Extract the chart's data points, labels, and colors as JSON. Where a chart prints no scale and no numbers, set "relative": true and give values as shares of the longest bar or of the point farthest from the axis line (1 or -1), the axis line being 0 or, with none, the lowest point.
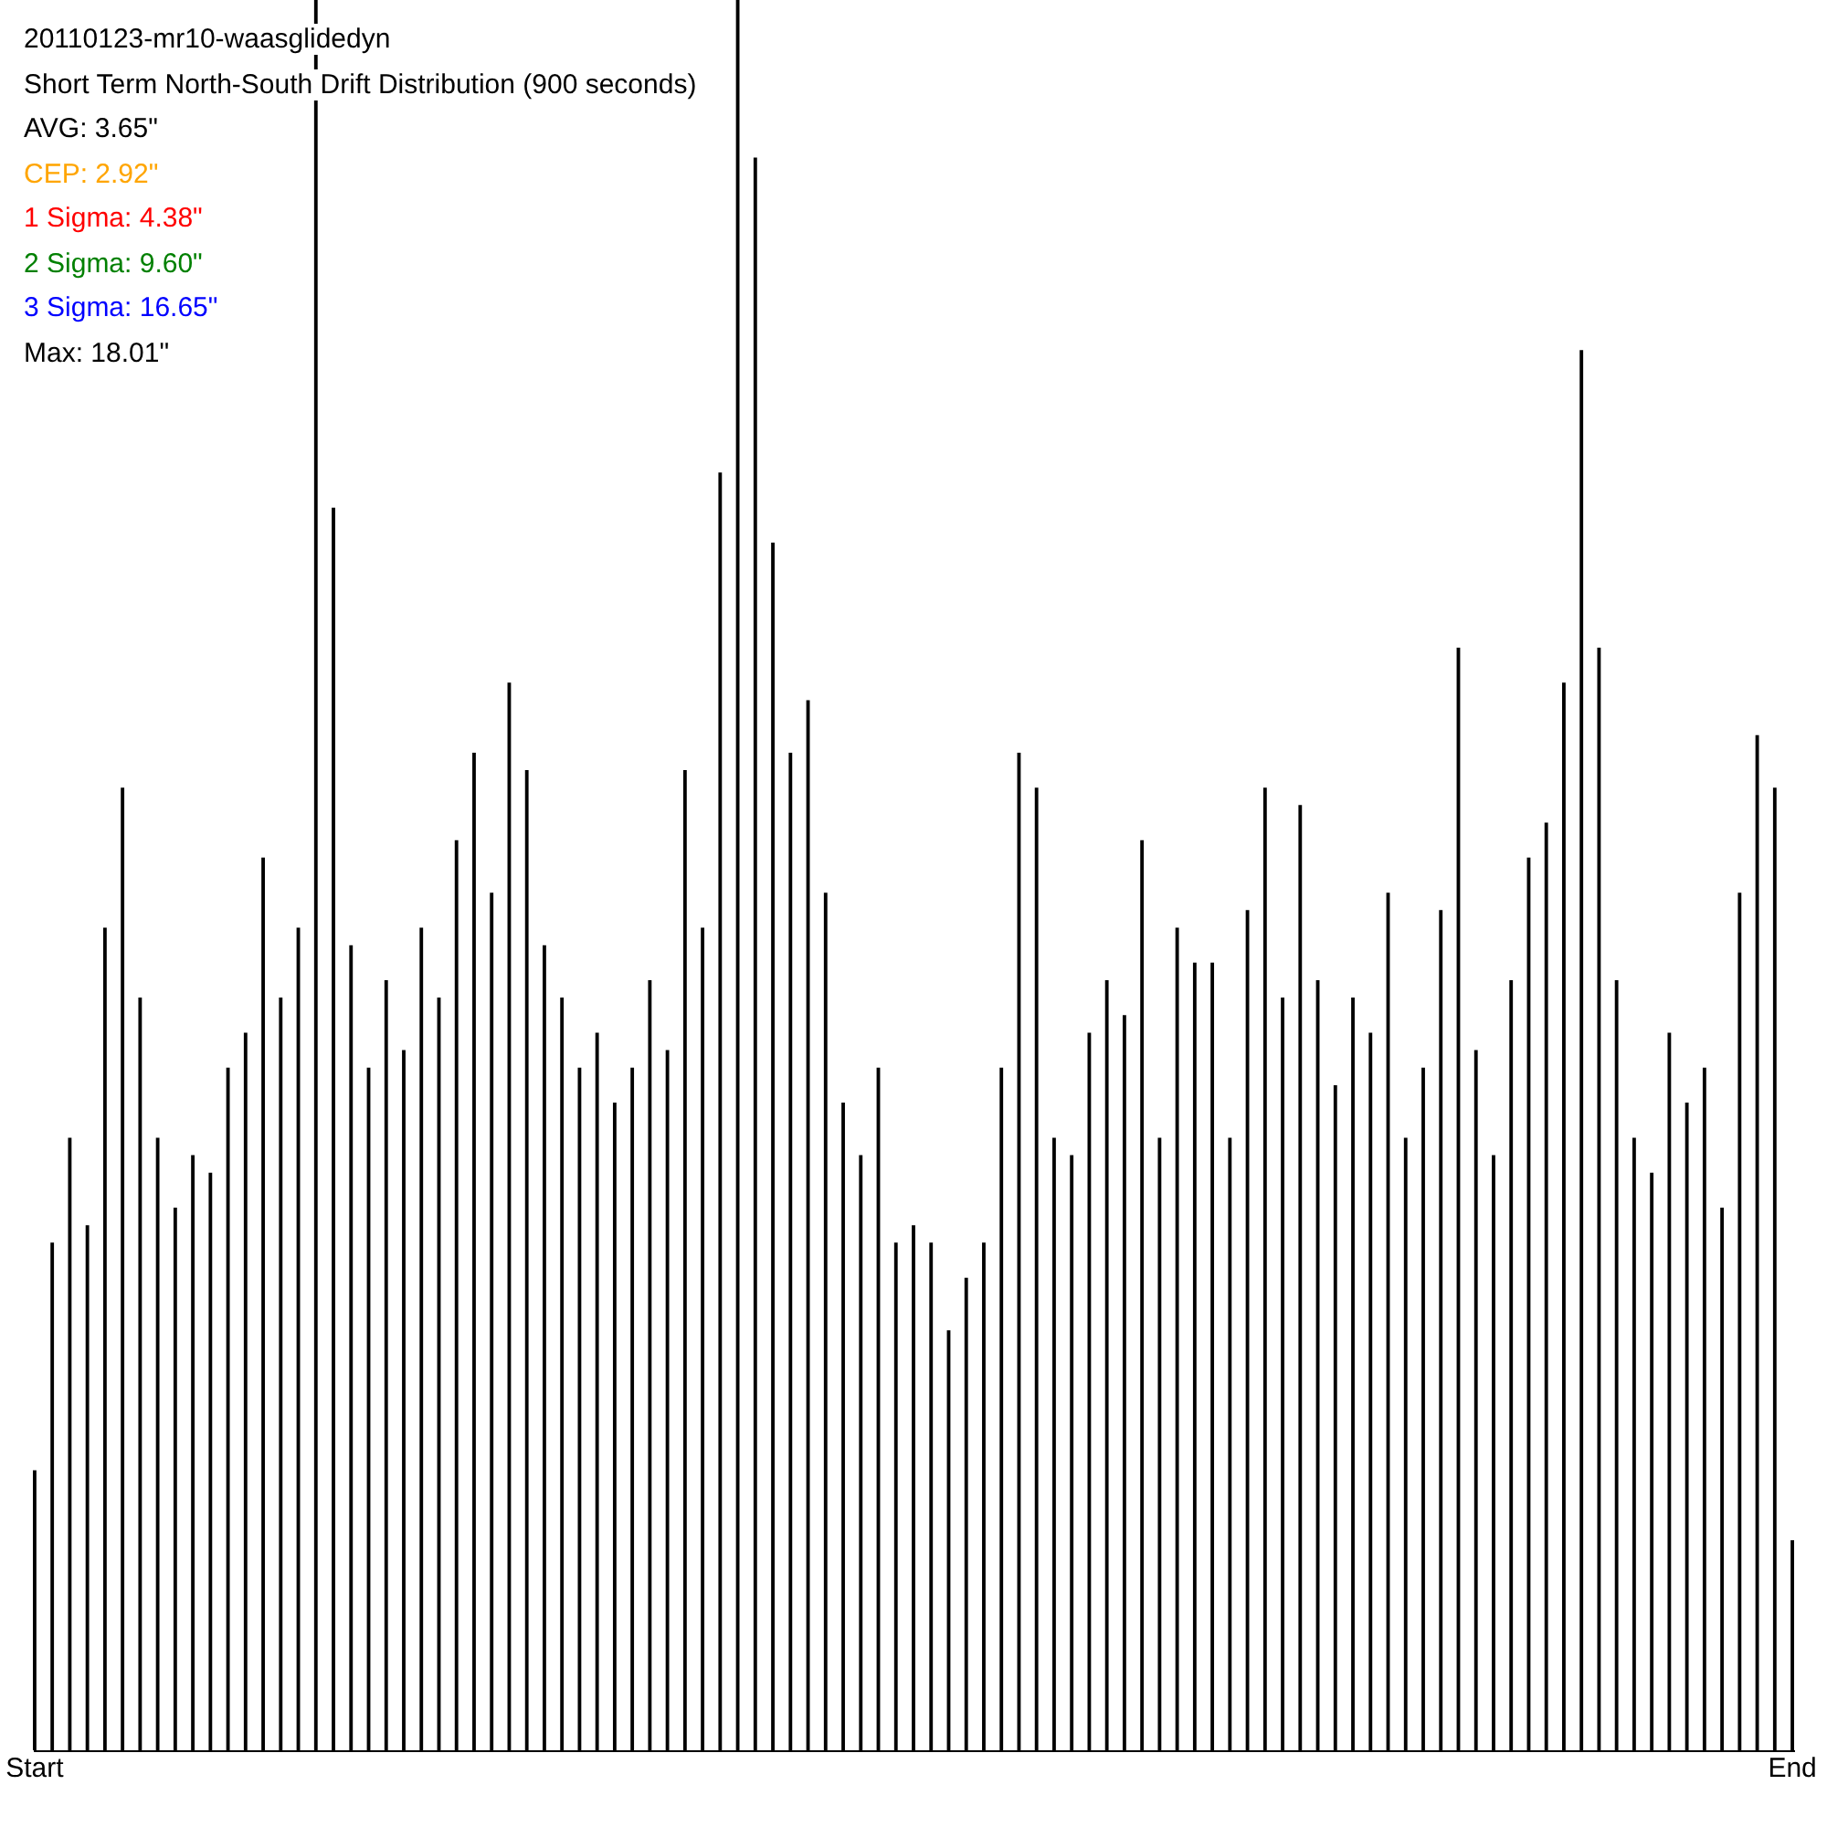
{
  "chart_data": {
    "type": "bar",
    "title": "20110123-mr10-waasglidedyn",
    "subtitle": "Short Term North-South Drift Distribution (900 seconds)",
    "annotations": [
      "AVG: 3.65\"",
      "CEP: 2.92\"",
      "1 Sigma: 4.38\"",
      "2 Sigma: 9.60\"",
      "3 Sigma: 16.65\"",
      "Max: 18.01\""
    ],
    "relative": true,
    "color": "#000000",
    "grid": false,
    "categories": [
      "Start",
      null,
      null,
      null,
      null,
      null,
      null,
      null,
      null,
      null,
      null,
      null,
      null,
      null,
      null,
      null,
      null,
      null,
      null,
      null,
      null,
      null,
      null,
      null,
      null,
      null,
      null,
      null,
      null,
      null,
      null,
      null,
      null,
      null,
      null,
      null,
      null,
      null,
      null,
      null,
      null,
      null,
      null,
      null,
      null,
      null,
      null,
      null,
      null,
      null,
      null,
      null,
      null,
      null,
      null,
      null,
      null,
      null,
      null,
      null,
      null,
      null,
      null,
      null,
      null,
      null,
      null,
      null,
      null,
      null,
      null,
      null,
      null,
      null,
      null,
      null,
      null,
      null,
      null,
      null,
      null,
      null,
      null,
      null,
      null,
      null,
      null,
      null,
      null,
      null,
      null,
      null,
      null,
      null,
      null,
      null,
      null,
      null,
      null,
      null,
      "End"
    ],
    "values": [
      0.16,
      0.29,
      0.35,
      0.3,
      0.47,
      0.55,
      0.43,
      0.35,
      0.31,
      0.34,
      0.33,
      0.39,
      0.41,
      0.51,
      0.43,
      0.47,
      1,
      0.71,
      0.46,
      0.39,
      0.44,
      0.4,
      0.47,
      0.43,
      0.52,
      0.57,
      0.49,
      0.61,
      0.56,
      0.46,
      0.43,
      0.39,
      0.41,
      0.37,
      0.39,
      0.44,
      0.4,
      0.56,
      0.47,
      0.73,
      1,
      0.91,
      0.69,
      0.57,
      0.6,
      0.49,
      0.37,
      0.34,
      0.39,
      0.29,
      0.3,
      0.29,
      0.24,
      0.27,
      0.29,
      0.39,
      0.57,
      0.55,
      0.35,
      0.34,
      0.41,
      0.44,
      0.42,
      0.52,
      0.35,
      0.47,
      0.45,
      0.45,
      0.35,
      0.48,
      0.55,
      0.43,
      0.54,
      0.44,
      0.38,
      0.43,
      0.41,
      0.49,
      0.35,
      0.39,
      0.48,
      0.63,
      0.4,
      0.34,
      0.44,
      0.51,
      0.53,
      0.61,
      0.8,
      0.63,
      0.44,
      0.35,
      0.33,
      0.41,
      0.37,
      0.39,
      0.31,
      0.49,
      0.58,
      0.55,
      0.12
    ]
  }
}
